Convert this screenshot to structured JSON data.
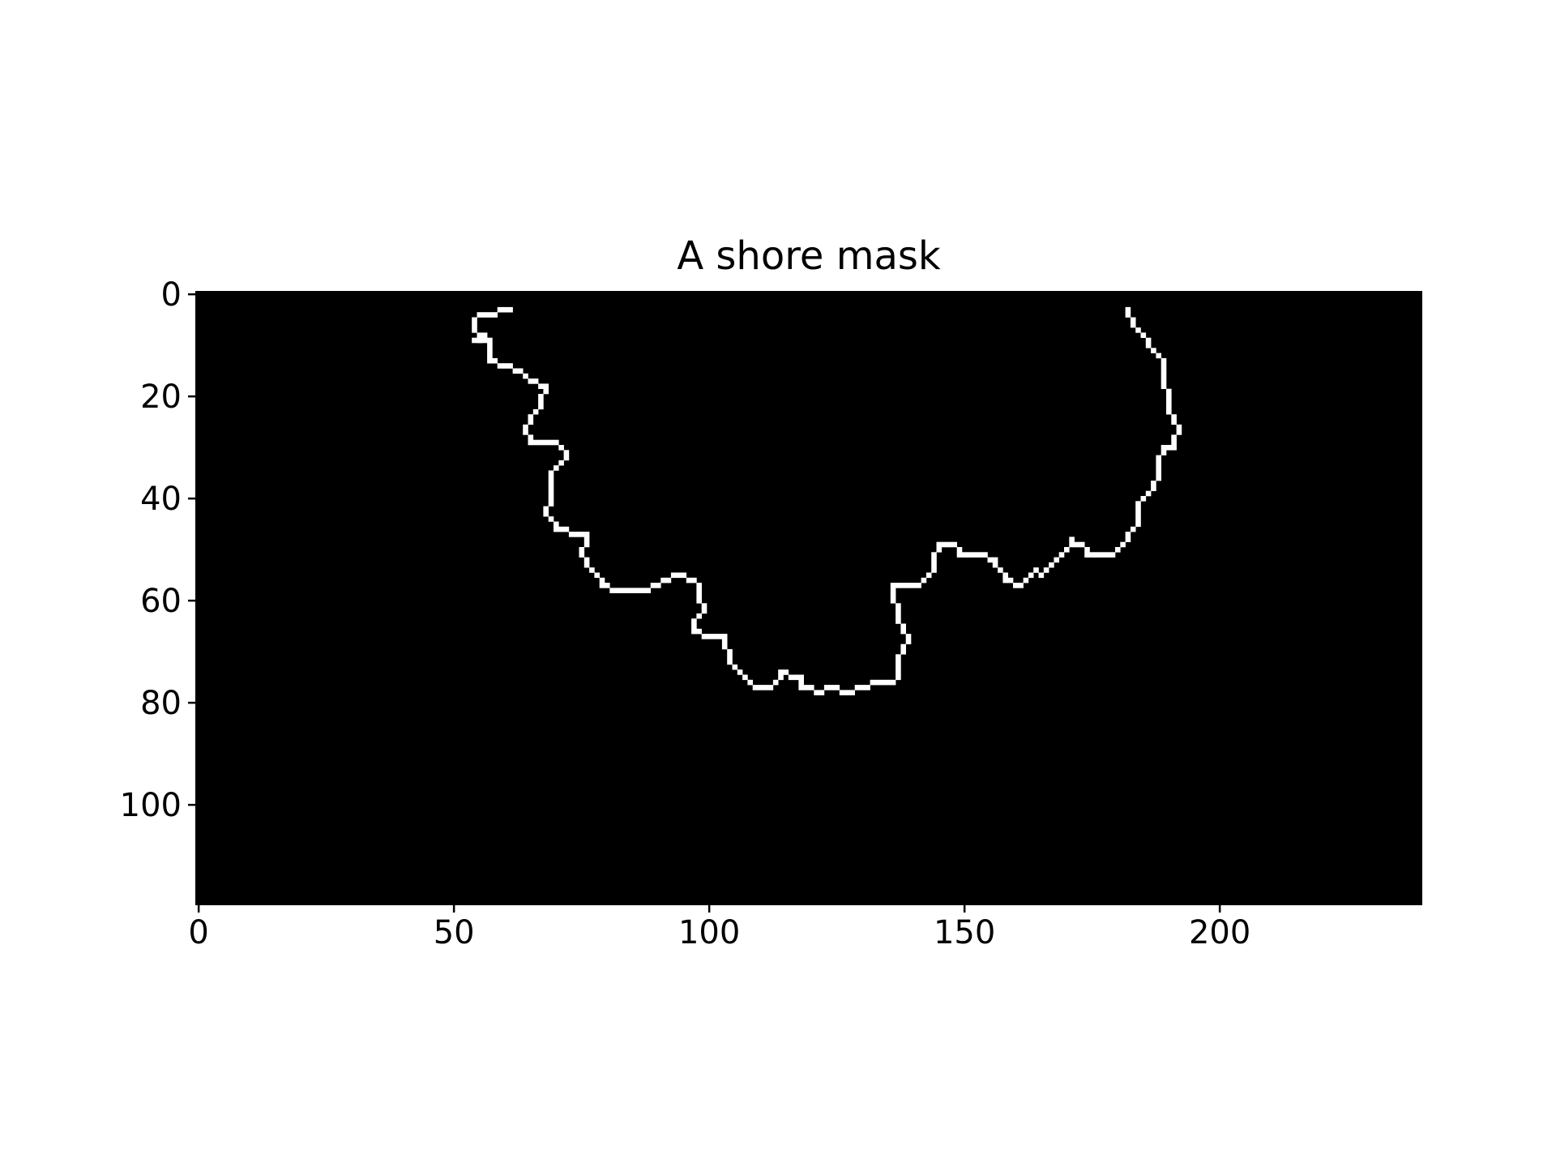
{
  "chart_data": {
    "type": "heatmap",
    "title": "A shore mask",
    "xlabel": "",
    "ylabel": "",
    "image_shape": [
      120,
      240
    ],
    "xlim": [
      -0.5,
      239.5
    ],
    "ylim": [
      119.5,
      -0.5
    ],
    "x_ticks": [
      0,
      50,
      100,
      150,
      200
    ],
    "y_ticks": [
      0,
      20,
      40,
      60,
      80,
      100
    ],
    "colormap": "gray",
    "background_color": "#000000",
    "foreground_color": "#ffffff",
    "grid": false,
    "shoreline": {
      "description_value": 1,
      "left_branch_points": [
        [
          61,
          3
        ],
        [
          55,
          4
        ],
        [
          54,
          5
        ],
        [
          54,
          7
        ],
        [
          56,
          8
        ],
        [
          54,
          9
        ],
        [
          57,
          9
        ],
        [
          57,
          13
        ],
        [
          60,
          14
        ],
        [
          63,
          15
        ],
        [
          64,
          16
        ],
        [
          65,
          17
        ],
        [
          68,
          18
        ],
        [
          67,
          20
        ],
        [
          67,
          22
        ],
        [
          66,
          23
        ],
        [
          65,
          24
        ],
        [
          64,
          26
        ],
        [
          64,
          27
        ],
        [
          65,
          29
        ],
        [
          70,
          29
        ],
        [
          72,
          31
        ],
        [
          72,
          32
        ],
        [
          70,
          34
        ],
        [
          69,
          35
        ],
        [
          69,
          36
        ],
        [
          69,
          37
        ],
        [
          69,
          39
        ],
        [
          69,
          40
        ],
        [
          68,
          43
        ],
        [
          69,
          44
        ],
        [
          70,
          46
        ],
        [
          76,
          47
        ],
        [
          76,
          49
        ],
        [
          75,
          50
        ],
        [
          75,
          51
        ],
        [
          76,
          53
        ],
        [
          77,
          54
        ],
        [
          78,
          55
        ],
        [
          79,
          56
        ],
        [
          79,
          57
        ],
        [
          83,
          58
        ],
        [
          88,
          58
        ],
        [
          91,
          56
        ],
        [
          94,
          55
        ],
        [
          97,
          56
        ],
        [
          98,
          58
        ],
        [
          98,
          60
        ],
        [
          99,
          62
        ],
        [
          98,
          63
        ],
        [
          97,
          64
        ],
        [
          97,
          66
        ],
        [
          100,
          67
        ],
        [
          103,
          67
        ],
        [
          103,
          69
        ],
        [
          104,
          70
        ],
        [
          104,
          72
        ],
        [
          105,
          73
        ],
        [
          106,
          74
        ],
        [
          107,
          75
        ],
        [
          109,
          77
        ],
        [
          111,
          77
        ],
        [
          113,
          76
        ],
        [
          114,
          74
        ],
        [
          118,
          75
        ],
        [
          118,
          77
        ],
        [
          120,
          77
        ],
        [
          121,
          78
        ],
        [
          123,
          77
        ],
        [
          125,
          77
        ],
        [
          127,
          78
        ],
        [
          129,
          77
        ],
        [
          133,
          76
        ],
        [
          136,
          76
        ],
        [
          137,
          75
        ],
        [
          137,
          73
        ],
        [
          137,
          71
        ],
        [
          138,
          70
        ],
        [
          138,
          69
        ],
        [
          139,
          67
        ],
        [
          138,
          66
        ],
        [
          137,
          64
        ],
        [
          137,
          61
        ],
        [
          136,
          60
        ],
        [
          136,
          57
        ],
        [
          140,
          57
        ],
        [
          142,
          56
        ],
        [
          143,
          55
        ],
        [
          144,
          54
        ],
        [
          144,
          51
        ],
        [
          145,
          49
        ],
        [
          148,
          49
        ],
        [
          149,
          51
        ],
        [
          154,
          51
        ],
        [
          155,
          52
        ],
        [
          156,
          52
        ],
        [
          156,
          53
        ],
        [
          157,
          54
        ],
        [
          158,
          55
        ],
        [
          158,
          56
        ],
        [
          159,
          56
        ],
        [
          160,
          57
        ],
        [
          162,
          56
        ],
        [
          163,
          55
        ],
        [
          164,
          54
        ],
        [
          165,
          55
        ],
        [
          166,
          54
        ],
        [
          167,
          53
        ],
        [
          168,
          52
        ],
        [
          169,
          51
        ],
        [
          170,
          50
        ],
        [
          171,
          48
        ],
        [
          173,
          49
        ],
        [
          174,
          51
        ],
        [
          179,
          51
        ],
        [
          180,
          50
        ],
        [
          181,
          49
        ],
        [
          182,
          47
        ],
        [
          183,
          46
        ],
        [
          184,
          45
        ],
        [
          184,
          41
        ],
        [
          185,
          40
        ],
        [
          186,
          39
        ],
        [
          188,
          36
        ],
        [
          188,
          32
        ],
        [
          189,
          30
        ],
        [
          191,
          30
        ],
        [
          191,
          28
        ],
        [
          192,
          26
        ],
        [
          191,
          25
        ],
        [
          190,
          22
        ],
        [
          190,
          20
        ],
        [
          189,
          17
        ],
        [
          189,
          14
        ],
        [
          188,
          12
        ],
        [
          187,
          11
        ],
        [
          186,
          10
        ],
        [
          186,
          9
        ],
        [
          185,
          8
        ],
        [
          184,
          7
        ],
        [
          183,
          6
        ],
        [
          182,
          4
        ],
        [
          182,
          3
        ]
      ]
    }
  }
}
